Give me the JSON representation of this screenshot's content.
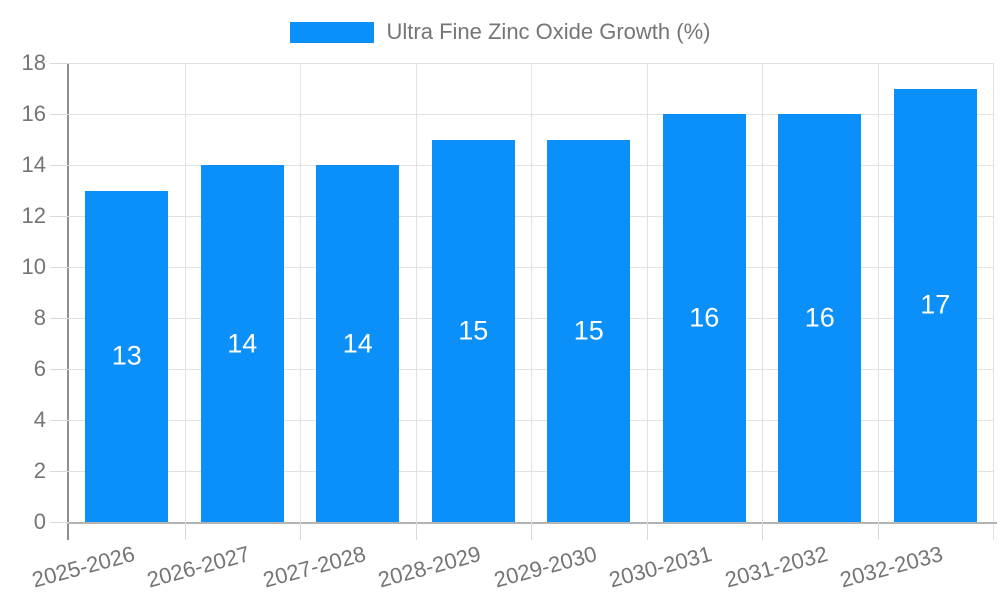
{
  "chart_data": {
    "type": "bar",
    "legend": "Ultra Fine Zinc Oxide Growth (%)",
    "legend_position": "top-center",
    "categories": [
      "2025-2026",
      "2026-2027",
      "2027-2028",
      "2028-2029",
      "2029-2030",
      "2030-2031",
      "2031-2032",
      "2032-2033"
    ],
    "values": [
      13,
      14,
      14,
      15,
      15,
      16,
      16,
      17
    ],
    "bar_value_labels": [
      "13",
      "14",
      "14",
      "15",
      "15",
      "16",
      "16",
      "17"
    ],
    "xlabel": "",
    "ylabel": "",
    "ylim": [
      0,
      18
    ],
    "yticks": [
      0,
      2,
      4,
      6,
      8,
      10,
      12,
      14,
      16,
      18
    ],
    "grid": true,
    "colors": {
      "bar": "#0a90f8",
      "bar_label": "#ffffff",
      "axis_text": "#757575",
      "gridline": "#e2e2e2",
      "tick": "#d9d9d9",
      "y_axis_line": "#8f8f8f",
      "x_axis_line": "#b3b3b3",
      "plot_border": "#e2e2e2",
      "background": "#ffffff"
    }
  }
}
